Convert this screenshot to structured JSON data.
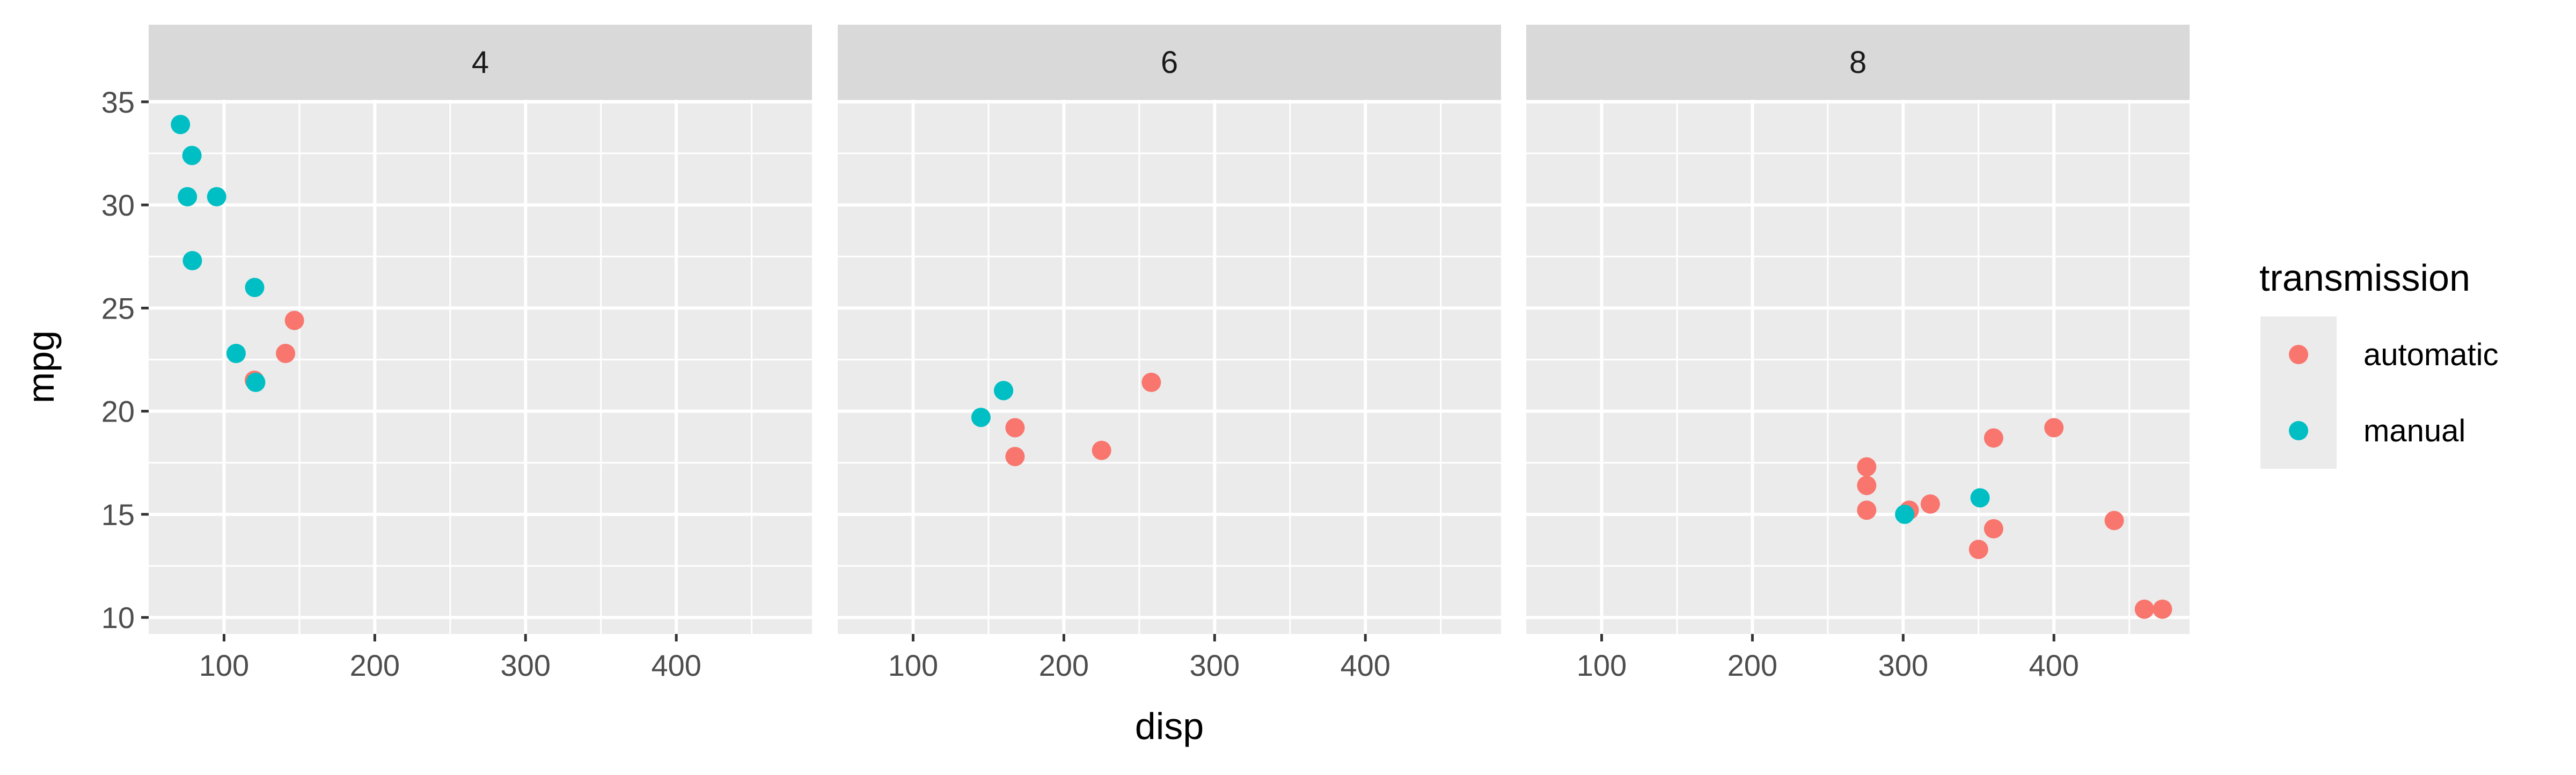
{
  "chart_data": {
    "type": "scatter",
    "xlabel": "disp",
    "ylabel": "mpg",
    "xlim": [
      50,
      490
    ],
    "ylim": [
      9.2,
      35.1
    ],
    "x_ticks": [
      100,
      200,
      300,
      400
    ],
    "y_ticks": [
      10,
      15,
      20,
      25,
      30,
      35
    ],
    "grid": true,
    "legend": {
      "title": "transmission",
      "placement": "right",
      "entries": [
        {
          "label": "automatic",
          "color": "#F8766D"
        },
        {
          "label": "manual",
          "color": "#00BFC4"
        }
      ]
    },
    "facets": [
      {
        "label": "4",
        "series": [
          {
            "name": "automatic",
            "points": [
              [
                146.7,
                24.4
              ],
              [
                140.8,
                22.8
              ],
              [
                120.1,
                21.5
              ]
            ]
          },
          {
            "name": "manual",
            "points": [
              [
                108,
                22.8
              ],
              [
                78.7,
                32.4
              ],
              [
                75.7,
                30.4
              ],
              [
                71.1,
                33.9
              ],
              [
                79,
                27.3
              ],
              [
                120.3,
                26
              ],
              [
                95.1,
                30.4
              ],
              [
                121,
                21.4
              ]
            ]
          }
        ]
      },
      {
        "label": "6",
        "series": [
          {
            "name": "automatic",
            "points": [
              [
                258,
                21.4
              ],
              [
                225,
                18.1
              ],
              [
                167.6,
                19.2
              ],
              [
                167.6,
                17.8
              ]
            ]
          },
          {
            "name": "manual",
            "points": [
              [
                160,
                21
              ],
              [
                160,
                21
              ],
              [
                145,
                19.7
              ]
            ]
          }
        ]
      },
      {
        "label": "8",
        "series": [
          {
            "name": "automatic",
            "points": [
              [
                360,
                18.7
              ],
              [
                360,
                14.3
              ],
              [
                275.8,
                16.4
              ],
              [
                275.8,
                17.3
              ],
              [
                275.8,
                15.2
              ],
              [
                472,
                10.4
              ],
              [
                460,
                10.4
              ],
              [
                440,
                14.7
              ],
              [
                318,
                15.5
              ],
              [
                304,
                15.2
              ],
              [
                350,
                13.3
              ],
              [
                400,
                19.2
              ]
            ]
          },
          {
            "name": "manual",
            "points": [
              [
                351,
                15.8
              ],
              [
                301,
                15
              ]
            ]
          }
        ]
      }
    ]
  }
}
